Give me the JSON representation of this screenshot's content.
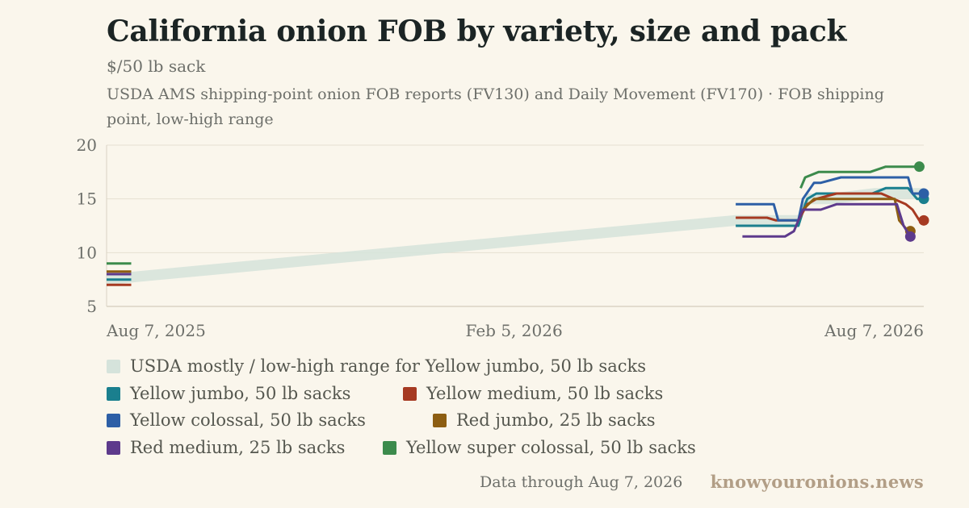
{
  "header": {
    "title": "California onion FOB by variety, size and pack",
    "subtitle": "$/50 lb sack",
    "source": "USDA AMS shipping-point onion FOB reports (FV130) and Daily Movement (FV170) · FOB shipping point, low-high range"
  },
  "footer": {
    "note": "Data through Aug 7, 2026",
    "brand": "knowyouronions.news"
  },
  "colors": {
    "background": "#faf6ec",
    "axis": "#d9d3c4",
    "gridline": "#e6e0d2",
    "tick_text": "#6d6f6a",
    "band": "#d5e3db"
  },
  "chart_data": {
    "type": "line",
    "x_type": "date",
    "xlim": [
      "2025-08-07",
      "2026-08-07"
    ],
    "x_ticks": [
      "2025-08-07",
      "2026-02-05",
      "2026-08-07"
    ],
    "x_tick_labels": [
      "Aug 7, 2025",
      "Feb 5, 2026",
      "Aug 7, 2026"
    ],
    "ylim": [
      5,
      20
    ],
    "y_ticks": [
      5,
      10,
      15,
      20
    ],
    "grid": "horizontal",
    "legend_position": "bottom",
    "band": {
      "name": "USDA mostly / low-high range for Yellow jumbo, 50 lb sacks",
      "color": "#d5e3db",
      "points": [
        {
          "x": "2025-08-07",
          "low": 7.0,
          "high": 8.0
        },
        {
          "x": "2026-05-15",
          "low": 12.5,
          "high": 13.5
        },
        {
          "x": "2026-06-12",
          "low": 12.5,
          "high": 13.5
        },
        {
          "x": "2026-06-16",
          "low": 14.5,
          "high": 15.5
        },
        {
          "x": "2026-06-26",
          "low": 14.5,
          "high": 15.5
        },
        {
          "x": "2026-07-16",
          "low": 15.0,
          "high": 16.0
        },
        {
          "x": "2026-08-07",
          "low": 15.0,
          "high": 16.0
        }
      ]
    },
    "series": [
      {
        "name": "Yellow jumbo, 50 lb sacks",
        "color": "#1a7f8e",
        "x": [
          "2025-08-07",
          "2025-08-18",
          "2026-05-15",
          "2026-06-06",
          "2026-06-12",
          "2026-06-15",
          "2026-06-16",
          "2026-06-20",
          "2026-07-01",
          "2026-07-15",
          "2026-07-21",
          "2026-07-31",
          "2026-08-02",
          "2026-08-04",
          "2026-08-07"
        ],
        "y": [
          7.5,
          7.5,
          12.5,
          12.5,
          12.5,
          14.5,
          15.0,
          15.5,
          15.5,
          15.5,
          16.0,
          16.0,
          15.5,
          15.0,
          15.0
        ],
        "end_marker": true
      },
      {
        "name": "Yellow medium, 50 lb sacks",
        "color": "#a63a22",
        "x": [
          "2025-08-07",
          "2025-08-18",
          "2026-05-15",
          "2026-05-29",
          "2026-06-02",
          "2026-06-12",
          "2026-06-16",
          "2026-06-20",
          "2026-06-29",
          "2026-07-19",
          "2026-07-30",
          "2026-08-02",
          "2026-08-05",
          "2026-08-07"
        ],
        "y": [
          7.0,
          7.0,
          13.25,
          13.25,
          13.0,
          13.0,
          14.5,
          15.0,
          15.5,
          15.5,
          14.5,
          14.0,
          13.0,
          13.0
        ],
        "end_marker": true
      },
      {
        "name": "Yellow colossal, 50 lb sacks",
        "color": "#2d5fa6",
        "x": [
          "2025-08-07",
          "2025-08-18",
          "2026-05-15",
          "2026-06-01",
          "2026-06-03",
          "2026-06-12",
          "2026-06-14",
          "2026-06-19",
          "2026-06-22",
          "2026-07-01",
          "2026-07-11",
          "2026-07-31",
          "2026-08-02",
          "2026-08-07"
        ],
        "y": [
          8.0,
          8.0,
          14.5,
          14.5,
          13.0,
          13.0,
          15.0,
          16.5,
          16.5,
          17.0,
          17.0,
          17.0,
          15.5,
          15.5
        ],
        "end_marker": true
      },
      {
        "name": "Red jumbo, 25 lb sacks",
        "color": "#8d5e12",
        "x": [
          "2025-08-07",
          "2025-08-18",
          "2026-06-14",
          "2026-06-19",
          "2026-06-24",
          "2026-07-25",
          "2026-07-27",
          "2026-07-30",
          "2026-08-01"
        ],
        "y": [
          8.25,
          8.25,
          14.0,
          15.0,
          15.0,
          15.0,
          13.0,
          12.25,
          12.0
        ],
        "end_marker": true
      },
      {
        "name": "Red medium, 25 lb sacks",
        "color": "#5d3a8c",
        "x": [
          "2025-08-07",
          "2025-08-18",
          "2026-05-18",
          "2026-06-02",
          "2026-06-06",
          "2026-06-10",
          "2026-06-12",
          "2026-06-14",
          "2026-06-16",
          "2026-06-22",
          "2026-06-29",
          "2026-07-26",
          "2026-07-29",
          "2026-08-01"
        ],
        "y": [
          8.0,
          8.0,
          11.5,
          11.5,
          11.5,
          12.0,
          13.0,
          14.0,
          14.0,
          14.0,
          14.5,
          14.5,
          12.5,
          11.5
        ],
        "end_marker": true
      },
      {
        "name": "Yellow super colossal, 50 lb sacks",
        "color": "#3c8b4c",
        "x": [
          "2025-08-07",
          "2025-08-18",
          "2026-06-13",
          "2026-06-15",
          "2026-06-21",
          "2026-07-12",
          "2026-07-14",
          "2026-07-21",
          "2026-08-05"
        ],
        "y": [
          9.0,
          9.0,
          16.0,
          17.0,
          17.5,
          17.5,
          17.5,
          18.0,
          18.0
        ],
        "end_marker": true
      }
    ]
  }
}
